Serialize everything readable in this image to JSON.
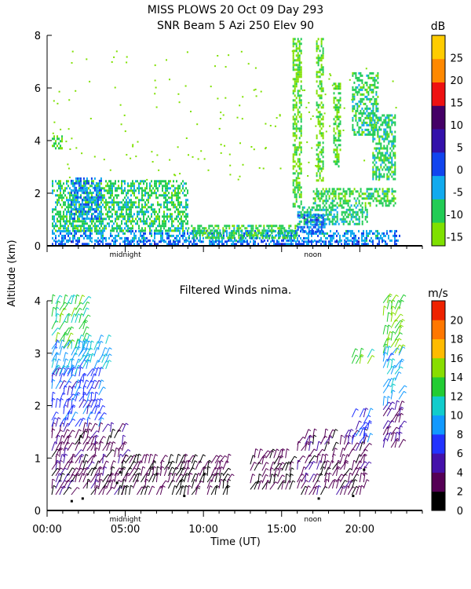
{
  "header": {
    "title": "MISS PLOWS  20 Oct 09 Day 293",
    "subtitle": "SNR Beam 5 Azi 250 Elev 90"
  },
  "shared": {
    "ylabel": "Altitude (km)",
    "xlabel": "Time (UT)",
    "x_ticklabels": [
      "00:00",
      "05:00",
      "10:00",
      "15:00",
      "20:00"
    ],
    "markers": [
      "midnight",
      "noon"
    ]
  },
  "chart_data": [
    {
      "type": "heatmap",
      "title": "SNR Beam 5 Azi 250 Elev 90",
      "xlabel": "Time (UT)",
      "ylabel": "Altitude (km)",
      "xlim": [
        0,
        24
      ],
      "ylim": [
        0,
        8
      ],
      "yticks": [
        "0",
        "2",
        "4",
        "6",
        "8"
      ],
      "colorbar": {
        "unit": "dB",
        "ticks": [
          "-15",
          "-10",
          "-5",
          "0",
          "5",
          "10",
          "15",
          "20",
          "25"
        ],
        "range": [
          -17,
          30
        ],
        "colors": [
          "#7fe000",
          "#22cc55",
          "#11aaee",
          "#1144ee",
          "#3311aa",
          "#440066",
          "#ee1111",
          "#ff8800",
          "#ffcc00"
        ]
      },
      "regions": [
        {
          "t0": 0.3,
          "t1": 22.5,
          "z0": 0.2,
          "z1": 0.6,
          "snr": -3
        },
        {
          "t0": 0.3,
          "t1": 22.3,
          "z0": 0.05,
          "z1": 0.2,
          "snr": 0
        },
        {
          "t0": 0.3,
          "t1": 9.0,
          "z0": 0.6,
          "z1": 2.5,
          "snr": -9
        },
        {
          "t0": 0.3,
          "t1": 1.0,
          "z0": 3.7,
          "z1": 4.2,
          "snr": -12
        },
        {
          "t0": 1.5,
          "t1": 3.5,
          "z0": 1.0,
          "z1": 2.6,
          "snr": -2
        },
        {
          "t0": 9.0,
          "t1": 16.0,
          "z0": 0.3,
          "z1": 0.8,
          "snr": -10
        },
        {
          "t0": 16.0,
          "t1": 20.5,
          "z0": 0.8,
          "z1": 1.5,
          "snr": -8
        },
        {
          "t0": 17.0,
          "t1": 22.3,
          "z0": 1.5,
          "z1": 2.2,
          "snr": -10
        },
        {
          "t0": 16.0,
          "t1": 17.8,
          "z0": 0.5,
          "z1": 1.2,
          "snr": 0
        },
        {
          "t0": 15.7,
          "t1": 16.3,
          "z0": 1.5,
          "z1": 7.9,
          "snr": -12
        },
        {
          "t0": 17.2,
          "t1": 17.7,
          "z0": 2.5,
          "z1": 7.9,
          "snr": -12
        },
        {
          "t0": 18.3,
          "t1": 18.8,
          "z0": 3.0,
          "z1": 6.2,
          "snr": -11
        },
        {
          "t0": 19.5,
          "t1": 21.2,
          "z0": 4.2,
          "z1": 6.6,
          "snr": -9
        },
        {
          "t0": 20.8,
          "t1": 22.3,
          "z0": 2.5,
          "z1": 5.0,
          "snr": -9
        }
      ]
    },
    {
      "type": "scatter",
      "title": "Filtered Winds nima.",
      "xlabel": "Time (UT)",
      "ylabel": "Altitude (km)",
      "xlim": [
        0,
        24
      ],
      "ylim": [
        0,
        4
      ],
      "yticks": [
        "0",
        "1",
        "2",
        "3",
        "4"
      ],
      "colorbar": {
        "unit": "m/s",
        "ticks": [
          "0",
          "2",
          "4",
          "6",
          "8",
          "10",
          "12",
          "14",
          "16",
          "18",
          "20"
        ],
        "range": [
          0,
          22
        ],
        "colors": [
          "#000000",
          "#550055",
          "#4411aa",
          "#2233ff",
          "#1199ff",
          "#11cccc",
          "#22cc33",
          "#88dd00",
          "#ffbb00",
          "#ff7700",
          "#ee2200"
        ]
      },
      "regions": [
        {
          "t0": 0.3,
          "t1": 4.8,
          "z0": 0.3,
          "z1": 1.6,
          "speed": 3
        },
        {
          "t0": 0.3,
          "t1": 3.5,
          "z0": 1.6,
          "z1": 2.6,
          "speed": 7
        },
        {
          "t0": 0.3,
          "t1": 2.5,
          "z0": 2.6,
          "z1": 3.1,
          "speed": 9
        },
        {
          "t0": 0.3,
          "t1": 2.5,
          "z0": 3.1,
          "z1": 4.0,
          "speed": 13
        },
        {
          "t0": 2.0,
          "t1": 3.8,
          "z0": 2.7,
          "z1": 3.2,
          "speed": 10
        },
        {
          "t0": 4.5,
          "t1": 11.5,
          "z0": 0.3,
          "z1": 1.0,
          "speed": 2
        },
        {
          "t0": 13.0,
          "t1": 15.5,
          "z0": 0.4,
          "z1": 1.1,
          "speed": 2
        },
        {
          "t0": 16.0,
          "t1": 20.3,
          "z0": 0.3,
          "z1": 1.5,
          "speed": 3
        },
        {
          "t0": 19.5,
          "t1": 20.5,
          "z0": 1.3,
          "z1": 1.8,
          "speed": 7
        },
        {
          "t0": 19.5,
          "t1": 20.5,
          "z0": 2.8,
          "z1": 3.0,
          "speed": 13
        },
        {
          "t0": 21.5,
          "t1": 22.5,
          "z0": 1.2,
          "z1": 2.0,
          "speed": 4
        },
        {
          "t0": 21.5,
          "t1": 22.5,
          "z0": 2.0,
          "z1": 3.0,
          "speed": 9
        },
        {
          "t0": 21.5,
          "t1": 22.5,
          "z0": 3.0,
          "z1": 4.0,
          "speed": 14
        }
      ]
    }
  ]
}
